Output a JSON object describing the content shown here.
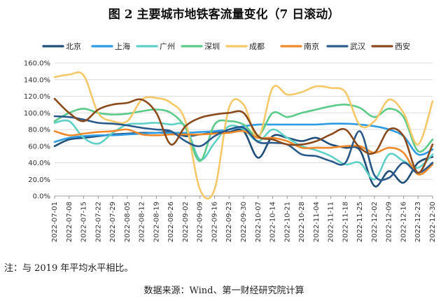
{
  "title": "图 2 主要城市地铁客流量变化（7 日滚动）",
  "note": "注：与 2019 年平均水平相比。",
  "source": "数据来源：Wind、第一财经研究院计算",
  "chart_data": {
    "type": "line",
    "title": "图 2 主要城市地铁客流量变化（7 日滚动）",
    "x": [
      "2022-07-01",
      "2022-07-08",
      "2022-07-15",
      "2022-07-22",
      "2022-07-29",
      "2022-08-05",
      "2022-08-12",
      "2022-08-19",
      "2022-08-26",
      "2022-09-02",
      "2022-09-09",
      "2022-09-16",
      "2022-09-23",
      "2022-09-30",
      "2022-10-07",
      "2022-10-14",
      "2022-10-21",
      "2022-10-28",
      "2022-11-04",
      "2022-11-11",
      "2022-11-18",
      "2022-11-25",
      "2022-12-02",
      "2022-12-09",
      "2022-12-16",
      "2022-12-23",
      "2022-12-30"
    ],
    "y_ticks": [
      "0.0%",
      "20.0%",
      "40.0%",
      "60.0%",
      "80.0%",
      "100.0%",
      "120.0%",
      "140.0%",
      "160.0%"
    ],
    "ylim": [
      0,
      160
    ],
    "grid": "horizontal",
    "legend_position": "top",
    "series": [
      {
        "name": "北京",
        "color": "#1f4e79",
        "values": [
          60,
          68,
          70,
          72,
          74,
          75,
          76,
          76,
          77,
          72,
          74,
          76,
          77,
          78,
          46,
          72,
          70,
          66,
          70,
          62,
          58,
          55,
          12,
          30,
          16,
          40,
          47
        ]
      },
      {
        "name": "上海",
        "color": "#2e9be3",
        "values": [
          65,
          70,
          72,
          73,
          73,
          74,
          75,
          76,
          76,
          76,
          77,
          78,
          80,
          84,
          86,
          86,
          86,
          86,
          86,
          87,
          87,
          86,
          84,
          80,
          72,
          50,
          56
        ]
      },
      {
        "name": "广州",
        "color": "#5fd0c6",
        "values": [
          88,
          90,
          70,
          63,
          76,
          86,
          87,
          88,
          86,
          84,
          44,
          64,
          84,
          80,
          66,
          80,
          70,
          60,
          55,
          48,
          38,
          40,
          20,
          50,
          42,
          34,
          50
        ]
      },
      {
        "name": "深圳",
        "color": "#5ccb8a",
        "values": [
          90,
          100,
          105,
          100,
          98,
          99,
          102,
          104,
          100,
          82,
          42,
          86,
          90,
          86,
          72,
          100,
          95,
          100,
          104,
          108,
          110,
          106,
          95,
          105,
          95,
          54,
          68
        ]
      },
      {
        "name": "成都",
        "color": "#f5c96a",
        "values": [
          143,
          146,
          145,
          100,
          90,
          90,
          116,
          118,
          112,
          90,
          8,
          8,
          106,
          110,
          70,
          130,
          122,
          125,
          132,
          130,
          125,
          85,
          90,
          116,
          100,
          62,
          114
        ]
      },
      {
        "name": "南京",
        "color": "#ee8a2c",
        "values": [
          78,
          73,
          75,
          77,
          78,
          80,
          74,
          73,
          74,
          74,
          74,
          75,
          76,
          78,
          70,
          70,
          66,
          58,
          58,
          58,
          60,
          60,
          52,
          58,
          52,
          26,
          38
        ]
      },
      {
        "name": "武汉",
        "color": "#2a5a8c",
        "values": [
          96,
          95,
          92,
          88,
          87,
          85,
          82,
          80,
          78,
          66,
          60,
          72,
          80,
          82,
          65,
          64,
          62,
          50,
          48,
          42,
          40,
          78,
          25,
          22,
          40,
          28,
          40
        ]
      },
      {
        "name": "西安",
        "color": "#8b4a1c",
        "values": [
          117,
          100,
          90,
          104,
          110,
          112,
          116,
          100,
          62,
          84,
          94,
          98,
          100,
          100,
          72,
          68,
          62,
          62,
          66,
          74,
          80,
          58,
          52,
          80,
          72,
          28,
          62
        ]
      }
    ]
  }
}
